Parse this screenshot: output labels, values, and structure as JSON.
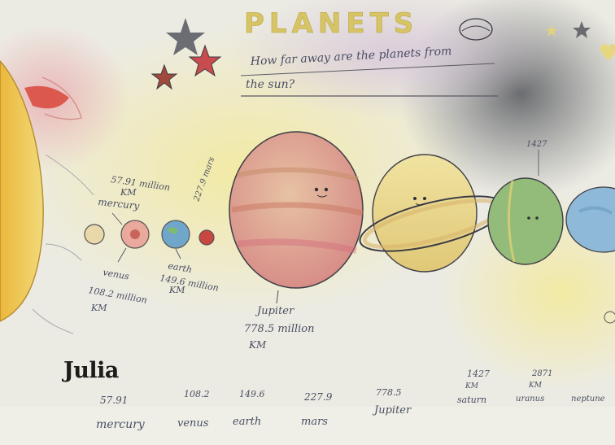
{
  "drawing": {
    "title": "PLANETS",
    "question_line1": "How far away are the planets from",
    "question_line2": "the sun?",
    "mercury_dist": "57.91 million",
    "mercury_unit": "KM",
    "mercury_name": "mercury",
    "venus_name": "venus",
    "venus_dist": "108.2 million",
    "venus_unit": "KM",
    "earth_name": "earth",
    "earth_dist": "149.6 million",
    "earth_unit": "KM",
    "mars_label": "227.9 mars",
    "jupiter_name": "Jupiter",
    "jupiter_dist": "778.5 million",
    "jupiter_unit": "KM",
    "saturn_dist": "1427",
    "uranus_dist": "2871",
    "bottom_vals": [
      "57.91",
      "108.2",
      "149.6",
      "227.9",
      "778.5",
      "1427",
      "2871"
    ],
    "bottom_unit_saturn": "KM",
    "bottom_unit_uranus": "KM",
    "bottom_names": [
      "mercury",
      "venus",
      "earth",
      "mars",
      "Jupiter",
      "saturn",
      "uranus",
      "neptune"
    ]
  },
  "caption": "Julia",
  "colors": {
    "paper": "#ecebe3",
    "sun": "#e8c24a",
    "jupiter": "#d99a8c",
    "saturn": "#e7d68d",
    "uranus": "#8ebb78",
    "neptune": "#8fb9d8",
    "ink": "#4a4e63"
  }
}
